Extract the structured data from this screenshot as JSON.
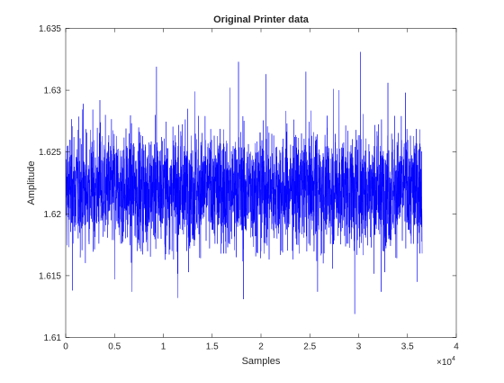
{
  "chart_data": {
    "type": "line",
    "title": "Original Printer data",
    "xlabel": "Samples",
    "ylabel": "Amplitude",
    "xlim": [
      0,
      40000
    ],
    "ylim": [
      1.61,
      1.635
    ],
    "x_tick_labels": [
      "0",
      "0.5",
      "1",
      "1.5",
      "2",
      "2.5",
      "3",
      "3.5",
      "4"
    ],
    "x_ticks": [
      0,
      5000,
      10000,
      15000,
      20000,
      25000,
      30000,
      35000,
      40000
    ],
    "x_exponent_base": "×10",
    "x_exponent_power": "4",
    "y_tick_labels": [
      "1.61",
      "1.615",
      "1.62",
      "1.625",
      "1.63",
      "1.635"
    ],
    "y_ticks": [
      1.61,
      1.615,
      1.62,
      1.625,
      1.63,
      1.635
    ],
    "grid": false,
    "legend": "none",
    "series": [
      {
        "color": "#0000ff",
        "x_range": [
          0,
          36500
        ],
        "sample_count": 36500,
        "center": 1.622,
        "dense_band": [
          1.6185,
          1.6255
        ],
        "typical_range": [
          1.615,
          1.6285
        ],
        "extremes": [
          {
            "x": 700,
            "y": 1.6138
          },
          {
            "x": 1800,
            "y": 1.6289
          },
          {
            "x": 3500,
            "y": 1.6292
          },
          {
            "x": 5000,
            "y": 1.6147
          },
          {
            "x": 6800,
            "y": 1.6137
          },
          {
            "x": 9300,
            "y": 1.6319
          },
          {
            "x": 11500,
            "y": 1.6132
          },
          {
            "x": 12500,
            "y": 1.6285
          },
          {
            "x": 13200,
            "y": 1.6299
          },
          {
            "x": 16800,
            "y": 1.6302
          },
          {
            "x": 17700,
            "y": 1.6323
          },
          {
            "x": 18200,
            "y": 1.6131
          },
          {
            "x": 20500,
            "y": 1.6313
          },
          {
            "x": 24600,
            "y": 1.6315
          },
          {
            "x": 25800,
            "y": 1.6137
          },
          {
            "x": 27400,
            "y": 1.6301
          },
          {
            "x": 28000,
            "y": 1.63
          },
          {
            "x": 29600,
            "y": 1.6119
          },
          {
            "x": 30200,
            "y": 1.6331
          },
          {
            "x": 32300,
            "y": 1.6137
          },
          {
            "x": 33000,
            "y": 1.6306
          },
          {
            "x": 34800,
            "y": 1.6298
          },
          {
            "x": 36000,
            "y": 1.6145
          }
        ]
      }
    ]
  }
}
